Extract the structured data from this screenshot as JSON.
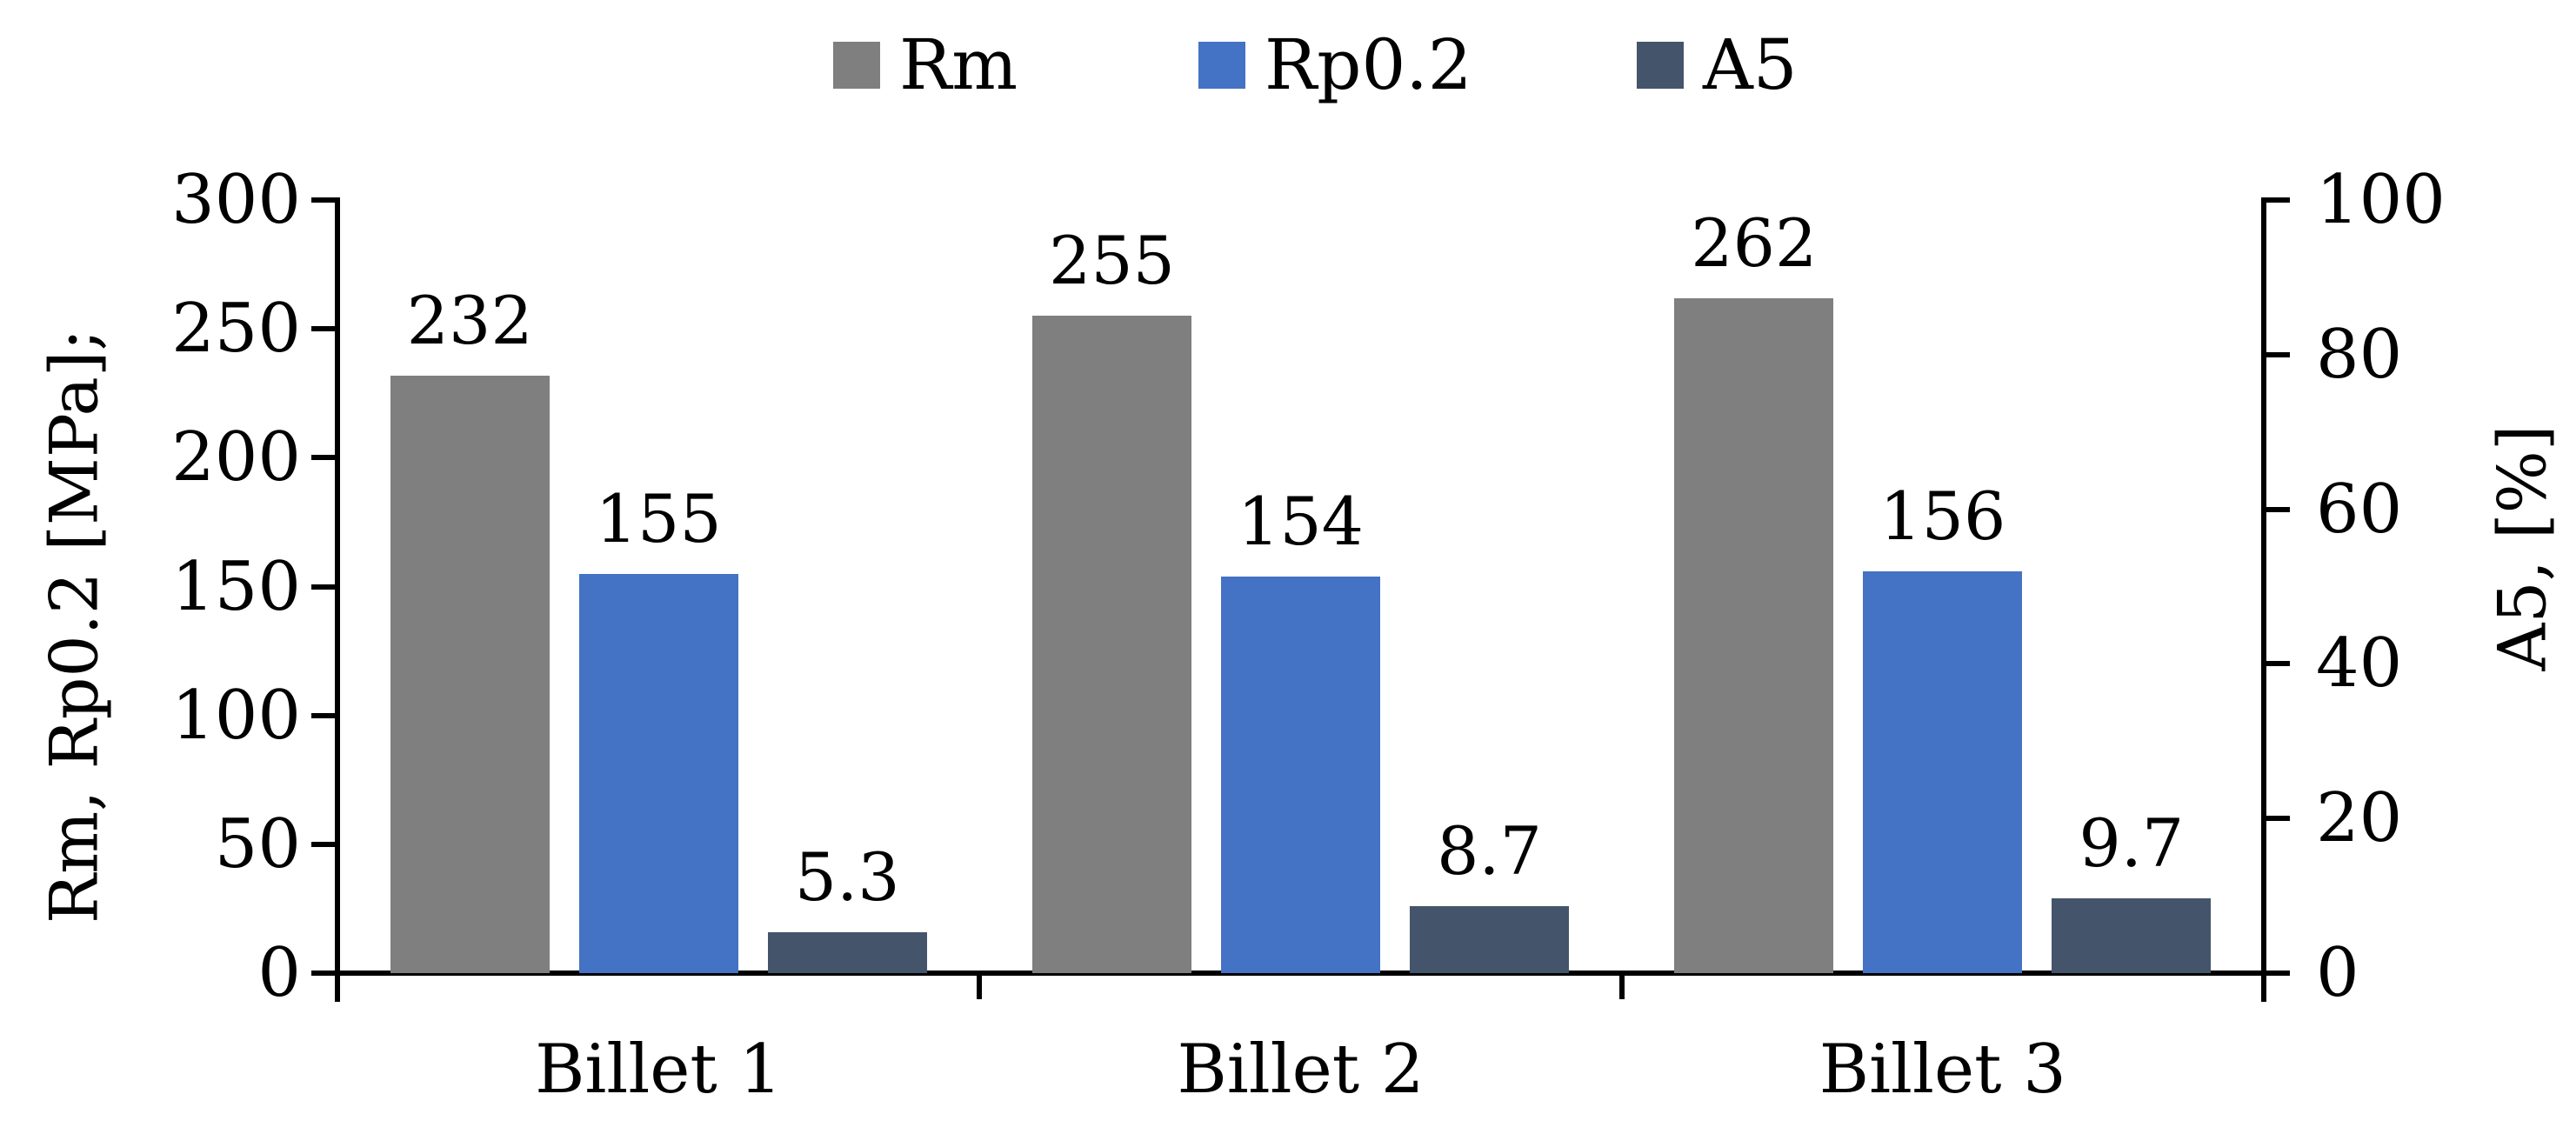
{
  "legend": {
    "items": [
      {
        "label": "Rm",
        "color": "#7F7F7F"
      },
      {
        "label": "Rp0.2",
        "color": "#4472C4"
      },
      {
        "label": "A5",
        "color": "#44546A"
      }
    ]
  },
  "left_axis": {
    "title": "Rm, Rp0.2 [MPa];",
    "tick_labels": [
      "300",
      "250",
      "200",
      "150",
      "100",
      "50",
      "0"
    ],
    "min": 0,
    "max": 300
  },
  "right_axis": {
    "title": "A5, [%]",
    "tick_labels": [
      "100",
      "80",
      "60",
      "40",
      "20",
      "0"
    ],
    "min": 0,
    "max": 100
  },
  "x_axis": {
    "categories": [
      "Billet 1",
      "Billet 2",
      "Billet 3"
    ]
  },
  "chart_data": {
    "type": "bar",
    "categories": [
      "Billet 1",
      "Billet 2",
      "Billet 3"
    ],
    "series": [
      {
        "name": "Rm",
        "axis": "left",
        "unit": "MPa",
        "color": "#7F7F7F",
        "values": [
          232,
          255,
          262
        ],
        "labels": [
          "232",
          "255",
          "262"
        ]
      },
      {
        "name": "Rp0.2",
        "axis": "left",
        "unit": "MPa",
        "color": "#4472C4",
        "values": [
          155,
          154,
          156
        ],
        "labels": [
          "155",
          "154",
          "156"
        ]
      },
      {
        "name": "A5",
        "axis": "right",
        "unit": "%",
        "color": "#44546A",
        "values": [
          5.3,
          8.7,
          9.7
        ],
        "labels": [
          "5.3",
          "8.7",
          "9.7"
        ]
      }
    ],
    "left_ylabel": "Rm, Rp0.2 [MPa];",
    "right_ylabel": "A5, [%]",
    "left_ylim": [
      0,
      300
    ],
    "right_ylim": [
      0,
      100
    ],
    "grid": false,
    "legend_position": "top",
    "data_labels": true
  },
  "colors": {
    "axis": "#000000",
    "text": "#000000",
    "background": "#FFFFFF"
  }
}
